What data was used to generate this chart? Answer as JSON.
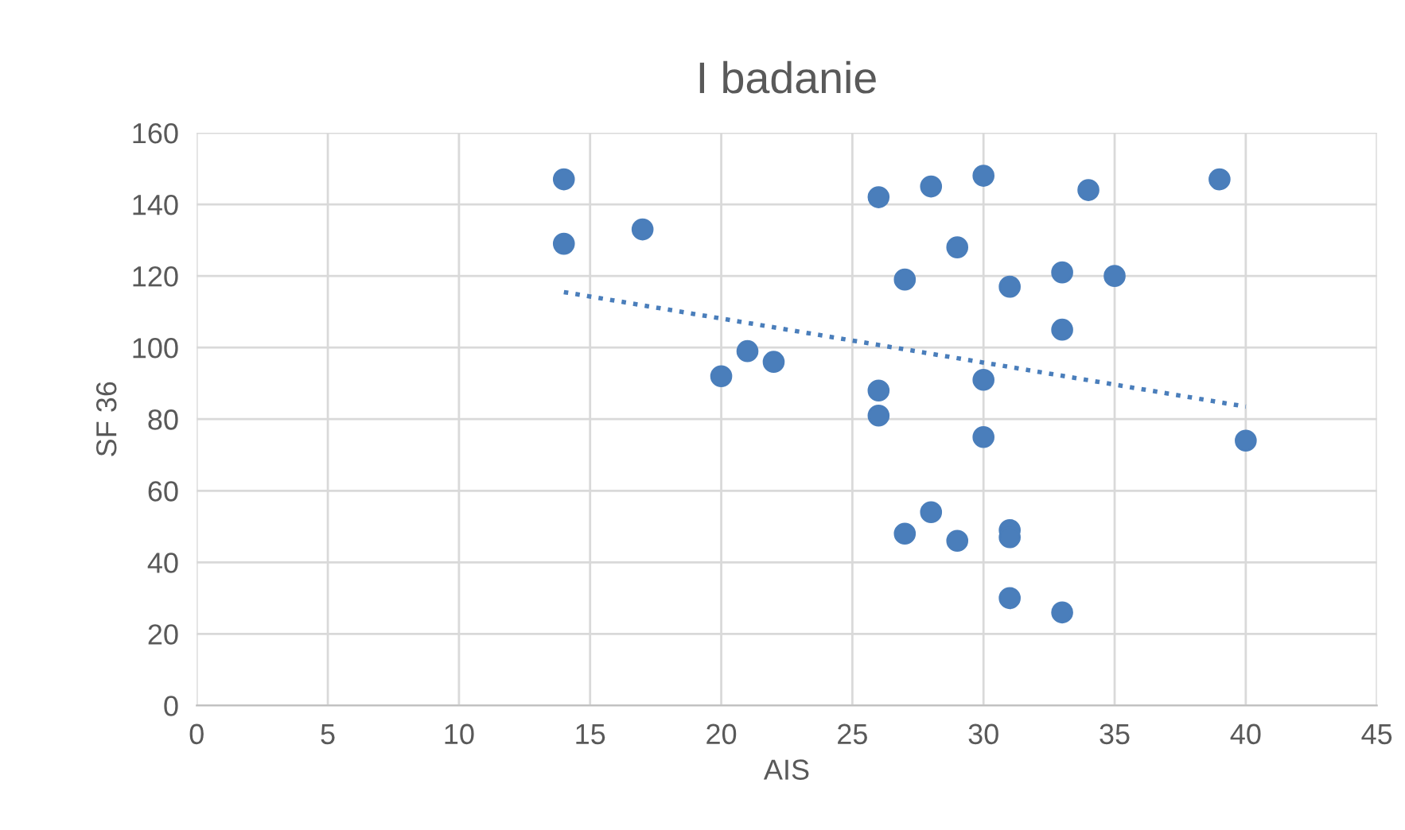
{
  "chart_data": {
    "type": "scatter",
    "title": "I badanie",
    "xlabel": "AIS",
    "ylabel": "SF 36",
    "xlim": [
      0,
      45
    ],
    "xticks": [
      0,
      5,
      10,
      15,
      20,
      25,
      30,
      35,
      40,
      45
    ],
    "ylim": [
      0,
      160
    ],
    "yticks": [
      0,
      20,
      40,
      60,
      80,
      100,
      120,
      140,
      160
    ],
    "grid": true,
    "marker": "circle",
    "series": [
      {
        "color": "#4a7ebb",
        "x": [
          14,
          14,
          17,
          20,
          21,
          22,
          26,
          26,
          26,
          27,
          27,
          28,
          28,
          29,
          29,
          30,
          30,
          30,
          31,
          31,
          31,
          31,
          33,
          33,
          33,
          34,
          35,
          39,
          40
        ],
        "values": [
          147,
          129,
          133,
          92,
          99,
          96,
          142,
          88,
          81,
          119,
          48,
          145,
          54,
          128,
          46,
          148,
          91,
          75,
          117,
          49,
          47,
          30,
          121,
          105,
          26,
          144,
          120,
          147,
          74
        ]
      },
      {
        "type": "line",
        "color": "#4a7ebb",
        "line_style": "dotted",
        "marker": "none",
        "x": [
          14,
          40
        ],
        "values": [
          115.5,
          83.5
        ]
      }
    ]
  }
}
